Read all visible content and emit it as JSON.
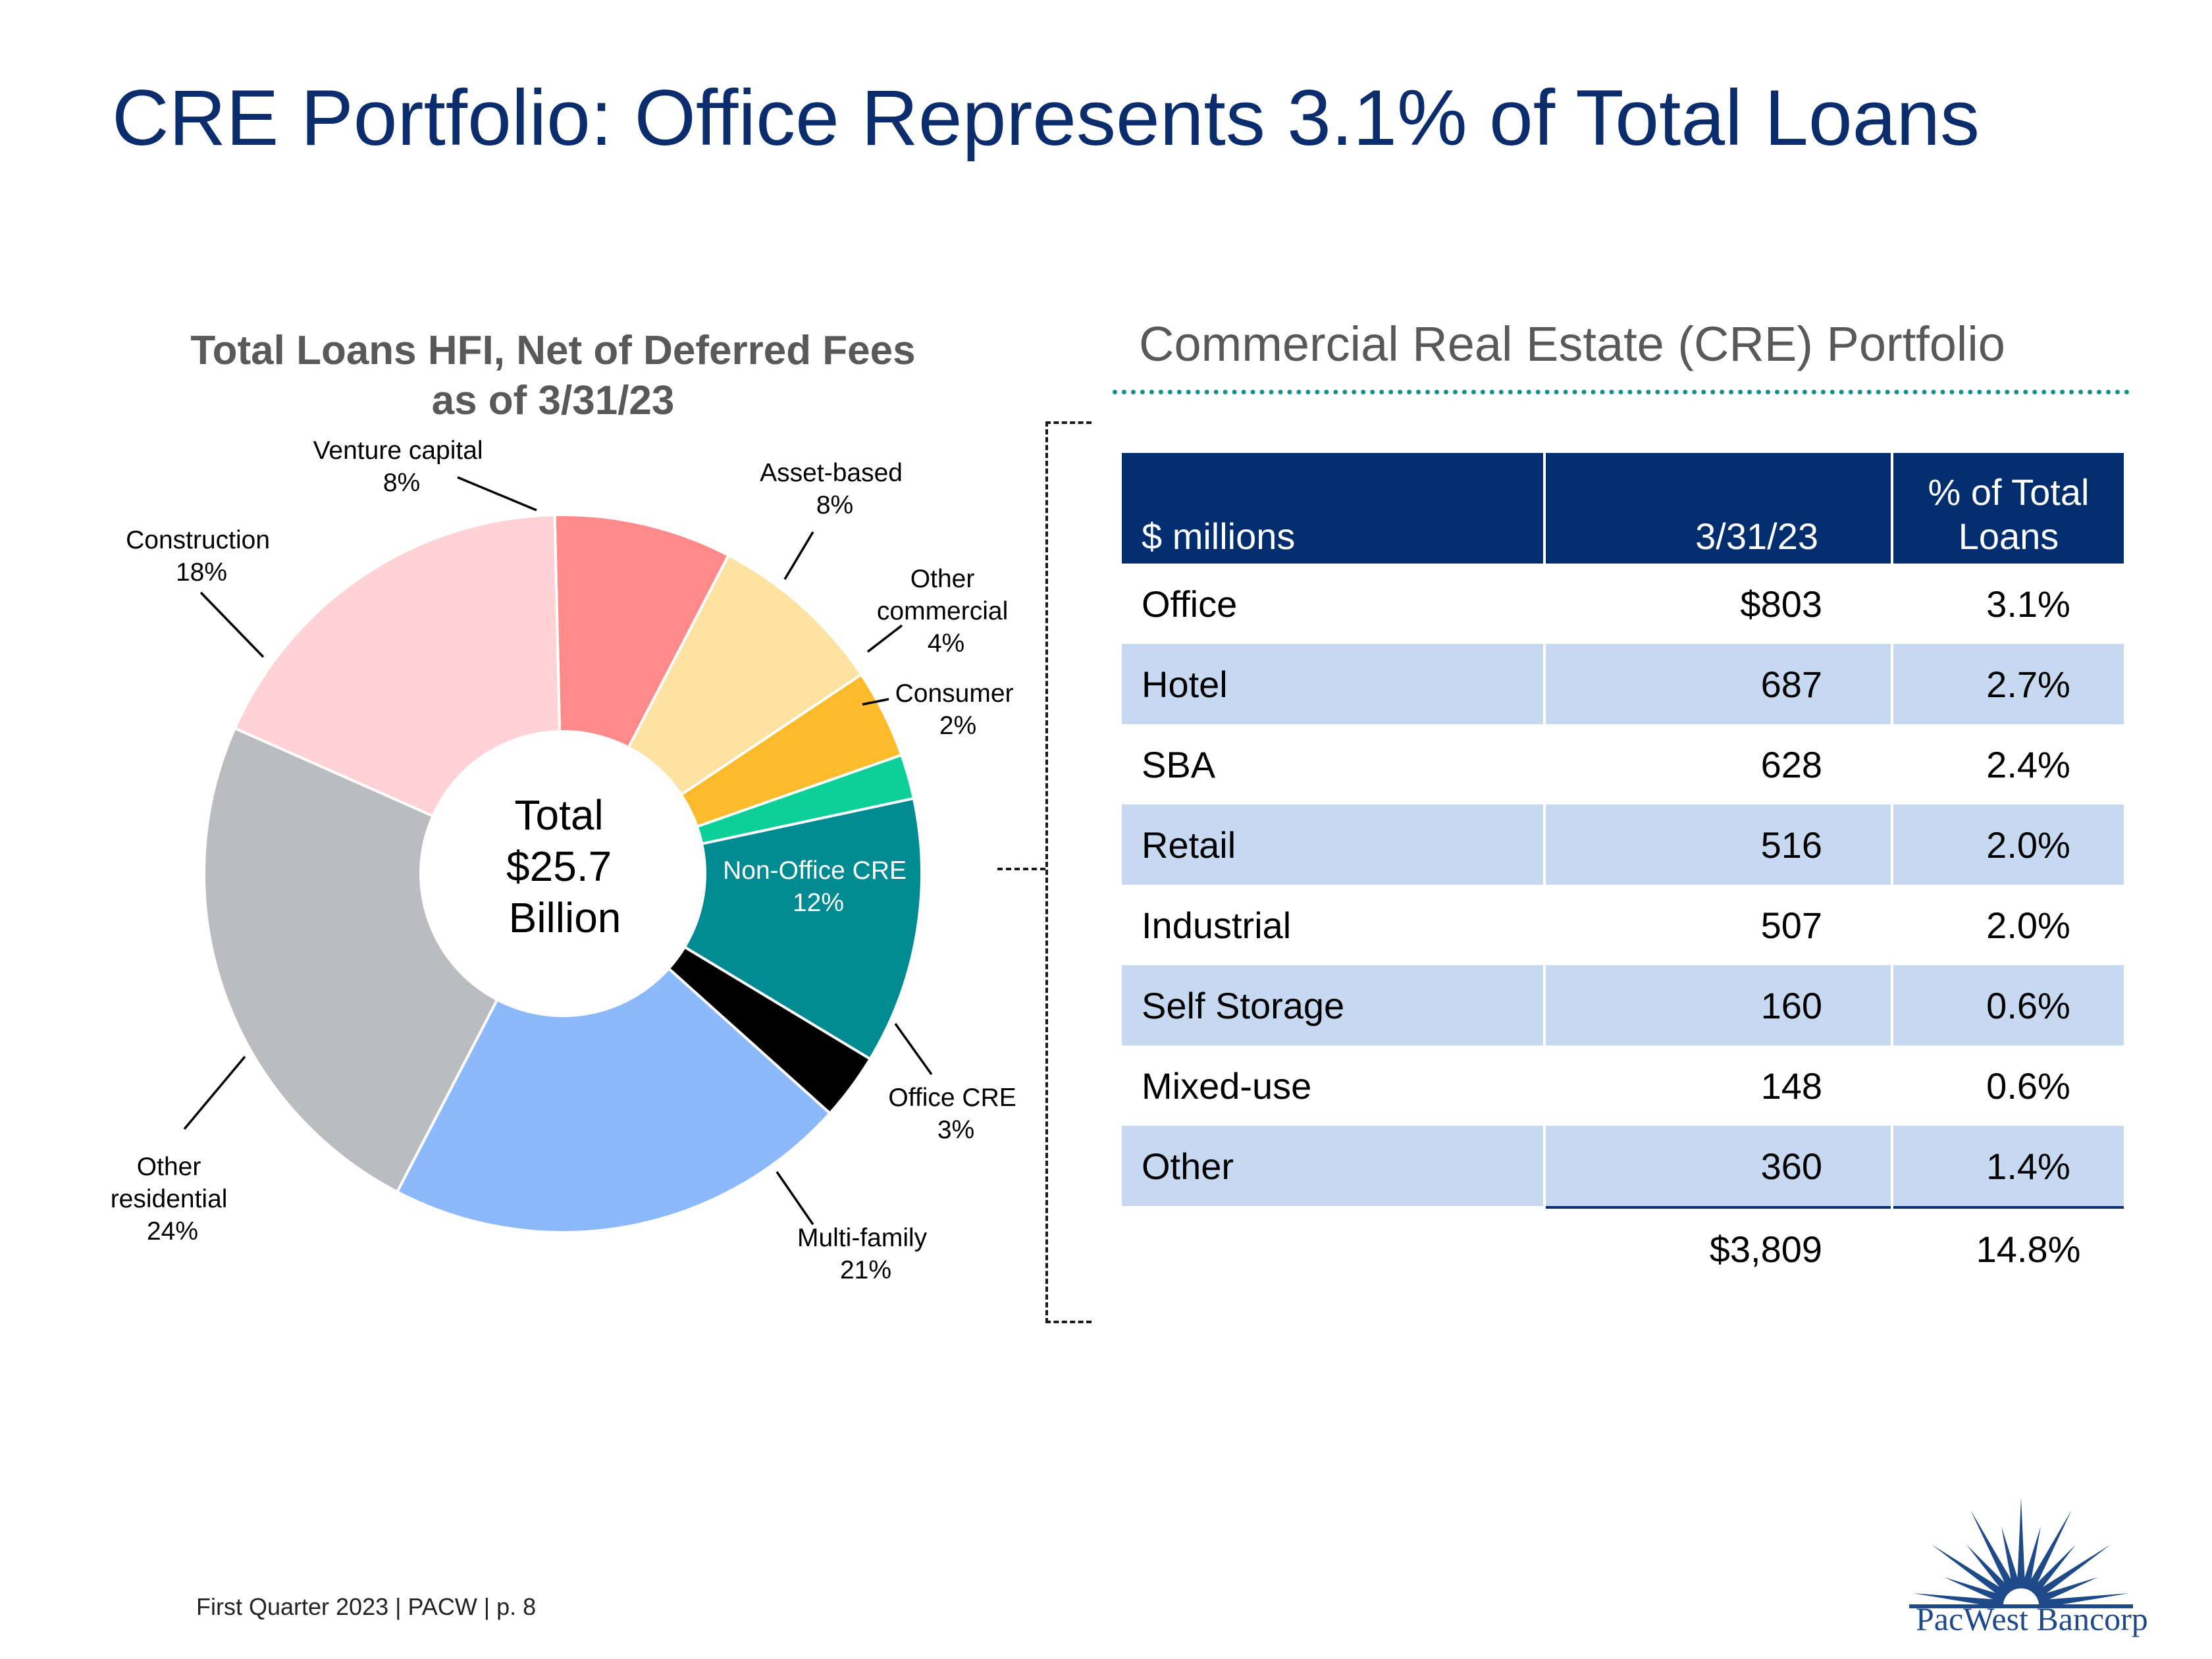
{
  "page_title": "CRE Portfolio: Office Represents 3.1% of Total Loans",
  "chart_title": [
    "Total Loans HFI, Net of Deferred Fees",
    "as of 3/31/23"
  ],
  "center_label": [
    "Total",
    "$25.7",
    "Billion"
  ],
  "chart_data": {
    "type": "pie",
    "title": "Total Loans HFI, Net of Deferred Fees as of 3/31/23",
    "unit": "%",
    "slices": [
      {
        "label": "Venture capital",
        "value": 8,
        "color": "#ff8a8a"
      },
      {
        "label": "Asset-based",
        "value": 8,
        "color": "#fde2a1"
      },
      {
        "label": "Other commercial",
        "value": 4,
        "color": "#fbbb2a"
      },
      {
        "label": "Consumer",
        "value": 2,
        "color": "#0ccf9a"
      },
      {
        "label": "Non-Office CRE",
        "value": 12,
        "color": "#008a91"
      },
      {
        "label": "Office CRE",
        "value": 3,
        "color": "#000000"
      },
      {
        "label": "Multi-family",
        "value": 21,
        "color": "#8cb9fc"
      },
      {
        "label": "Other residential",
        "value": 24,
        "color": "#bbbcc0"
      },
      {
        "label": "Construction",
        "value": 18,
        "color": "#ffd3d6"
      }
    ],
    "slice_labels": [
      [
        "Venture capital",
        "8%"
      ],
      [
        "Asset-based",
        "8%"
      ],
      [
        "Other",
        "commercial",
        "4%"
      ],
      [
        "Consumer",
        "2%"
      ],
      [
        "Non-Office CRE",
        "12%"
      ],
      [
        "Office CRE",
        "3%"
      ],
      [
        "Multi-family",
        "21%"
      ],
      [
        "Other",
        "residential",
        "24%"
      ],
      [
        "Construction",
        "18%"
      ]
    ],
    "center_text": "Total $25.7 Billion"
  },
  "table": {
    "title": "Commercial Real Estate (CRE) Portfolio",
    "headers": [
      "$ millions",
      "3/31/23",
      "% of Total",
      "Loans"
    ],
    "rows": [
      {
        "name": "Office",
        "value": "$803",
        "pct": "3.1%"
      },
      {
        "name": "Hotel",
        "value": "687",
        "pct": "2.7%"
      },
      {
        "name": "SBA",
        "value": "628",
        "pct": "2.4%"
      },
      {
        "name": "Retail",
        "value": "516",
        "pct": "2.0%"
      },
      {
        "name": "Industrial",
        "value": "507",
        "pct": "2.0%"
      },
      {
        "name": "Self Storage",
        "value": "160",
        "pct": "0.6%"
      },
      {
        "name": "Mixed-use",
        "value": "148",
        "pct": "0.6%"
      },
      {
        "name": "Other",
        "value": "360",
        "pct": "1.4%"
      }
    ],
    "total": {
      "value": "$3,809",
      "pct": "14.8%"
    }
  },
  "footer": "First Quarter 2023 | PACW | p. 8",
  "logo_text": "PacWest Bancorp",
  "colors": {
    "title": "#0b2d6e",
    "header_bg": "#022d6e",
    "shaded_row": "#c6d9f1",
    "rule": "#14908e"
  }
}
